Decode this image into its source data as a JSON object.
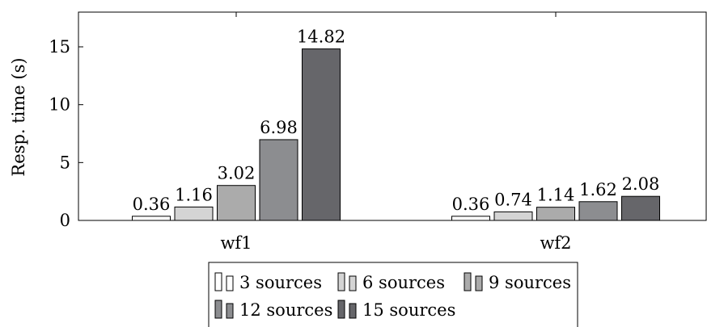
{
  "chart_data": {
    "type": "bar",
    "title": "",
    "xlabel": "",
    "ylabel": "Resp. time (s)",
    "ylim": [
      0,
      18
    ],
    "yticks": [
      0,
      5,
      10,
      15
    ],
    "categories": [
      "wf1",
      "wf2"
    ],
    "series": [
      {
        "name": "3 sources",
        "color": "#ffffff",
        "values": [
          0.36,
          0.36
        ],
        "labels": [
          "0.36",
          "0.36"
        ]
      },
      {
        "name": "6 sources",
        "color": "#d4d4d4",
        "values": [
          1.16,
          0.74
        ],
        "labels": [
          "1.16",
          "0.74"
        ]
      },
      {
        "name": "9 sources",
        "color": "#ababab",
        "values": [
          3.02,
          1.14
        ],
        "labels": [
          "3.02",
          "1.14"
        ]
      },
      {
        "name": "12 sources",
        "color": "#8c8d90",
        "values": [
          6.98,
          1.62
        ],
        "labels": [
          "6.98",
          "1.62"
        ]
      },
      {
        "name": "15 sources",
        "color": "#66666a",
        "values": [
          14.82,
          2.08
        ],
        "labels": [
          "14.82",
          "2.08"
        ]
      }
    ],
    "grid": false,
    "legend_position": "bottom"
  }
}
